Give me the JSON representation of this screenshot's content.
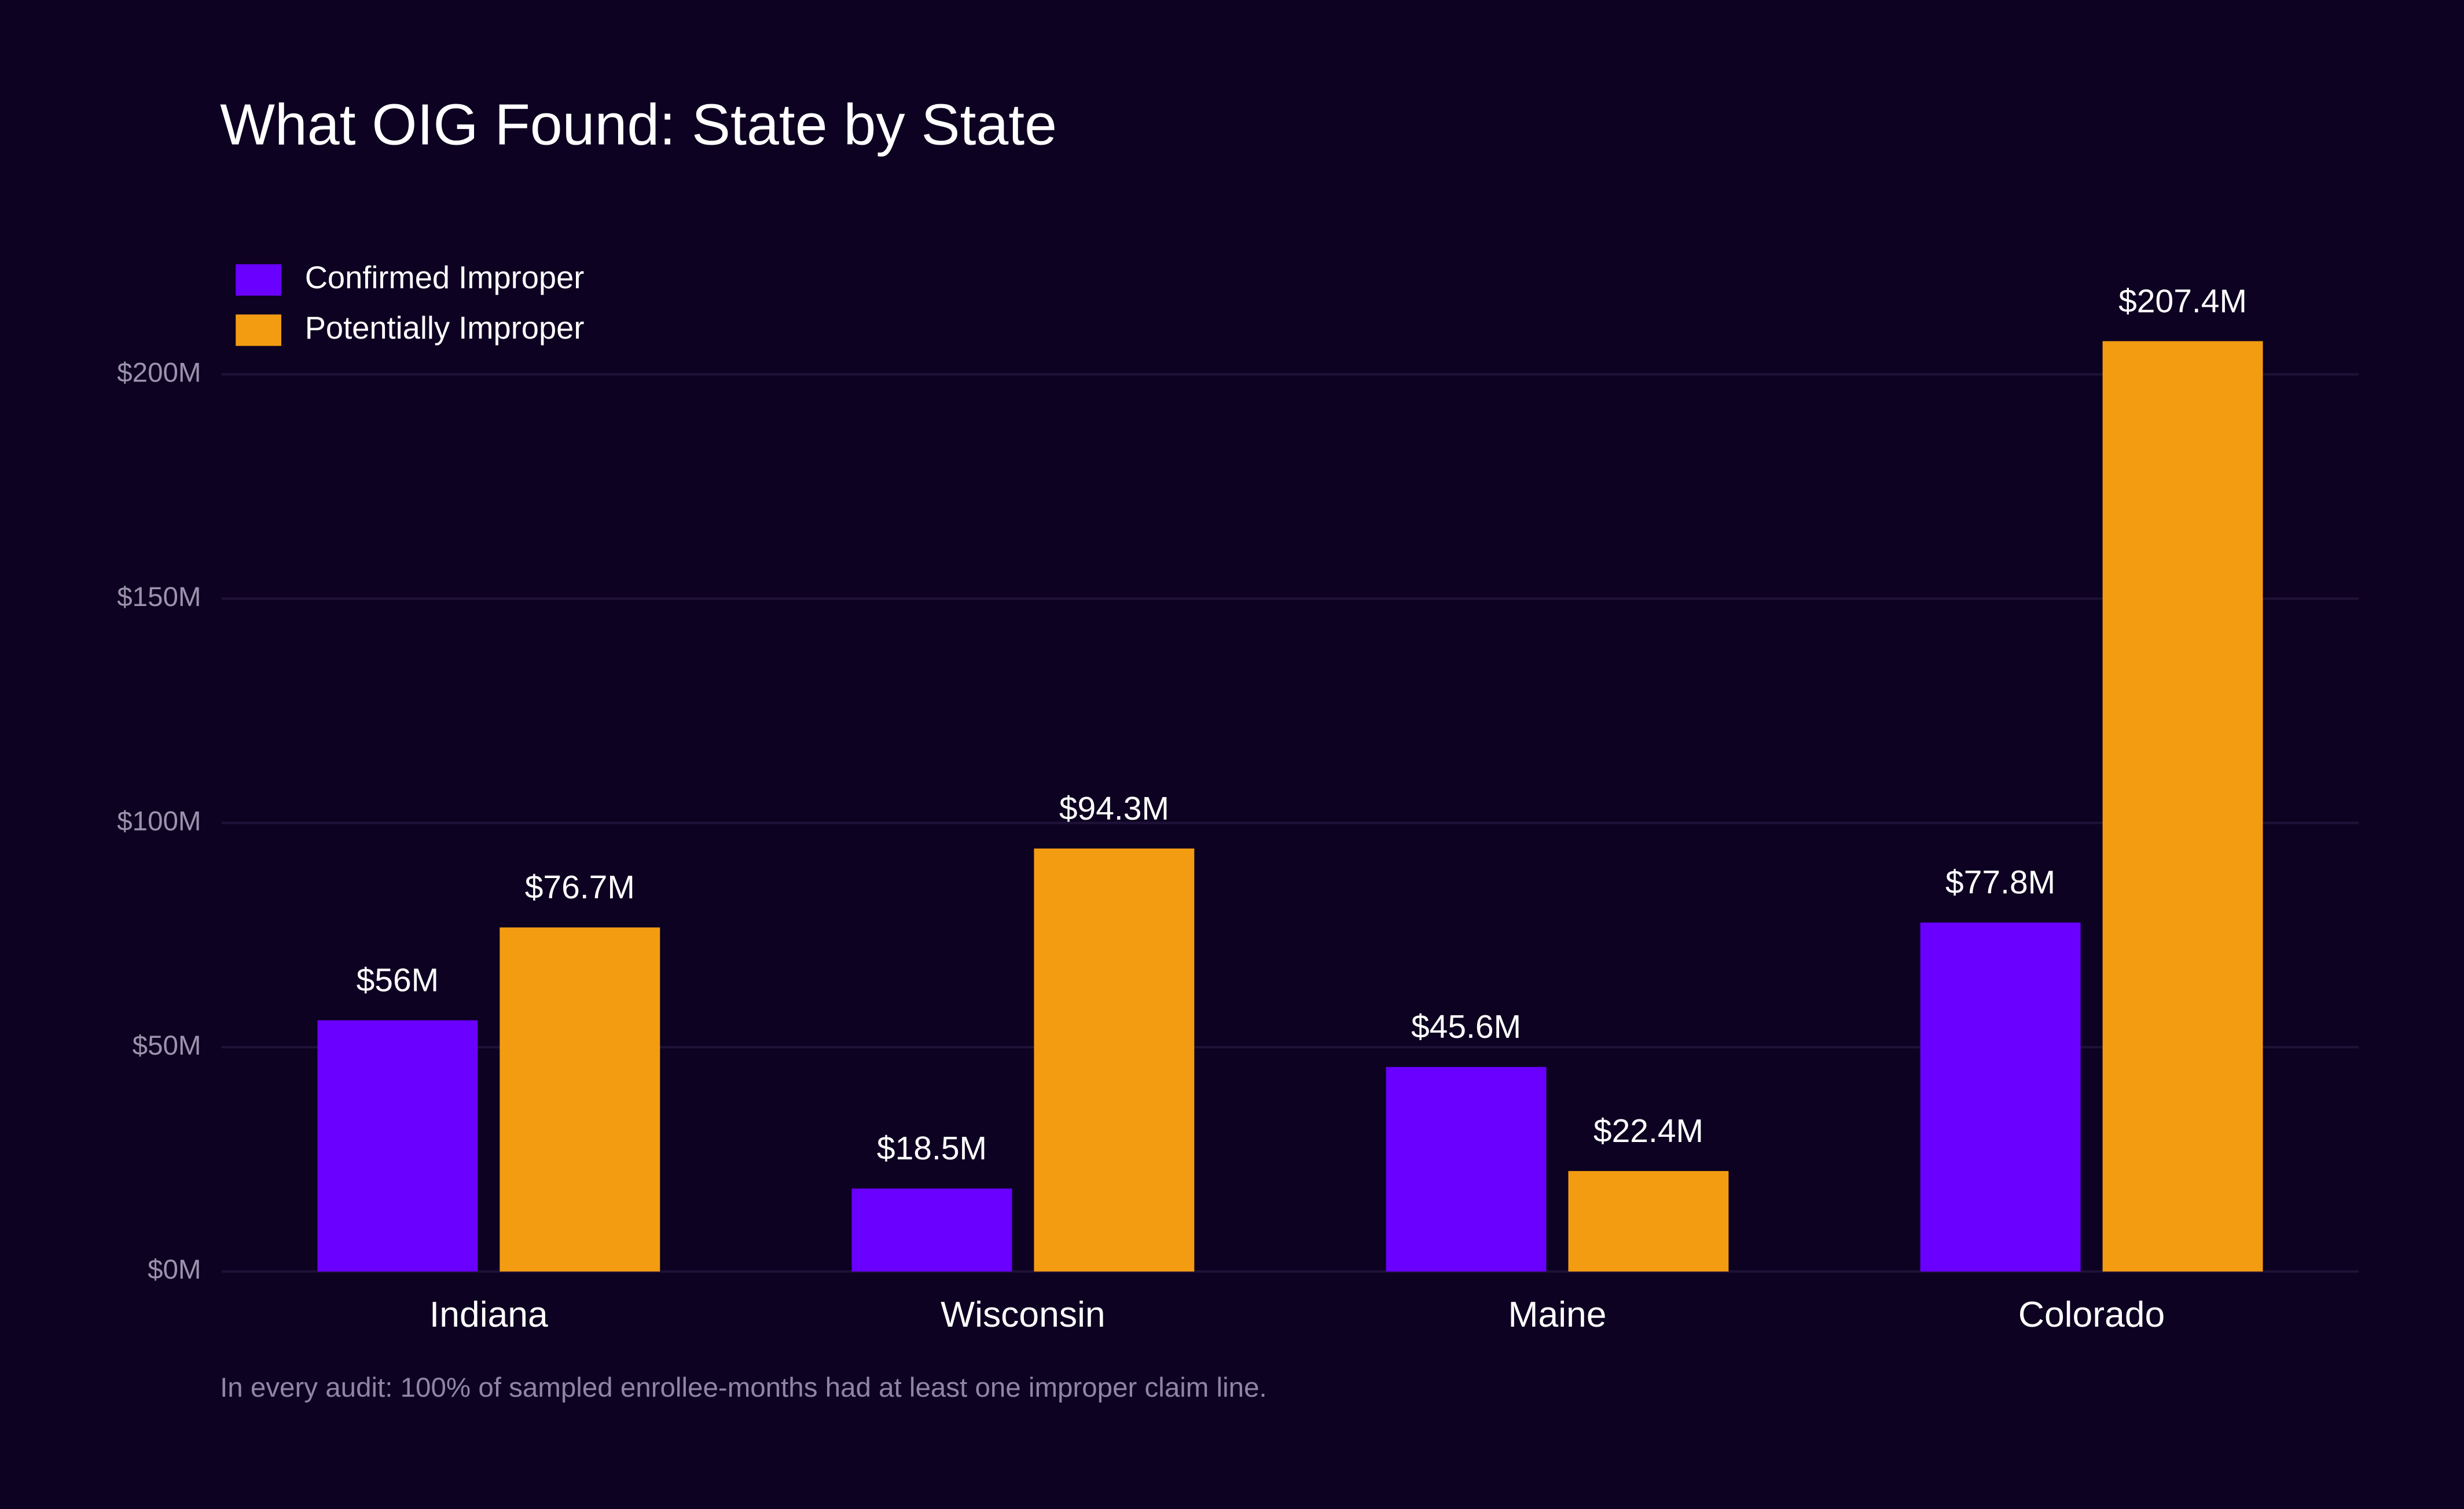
{
  "chart_data": {
    "type": "bar",
    "title": "What OIG Found: State by State",
    "caption": "In every audit: 100% of sampled enrollee-months had at least one improper claim line.",
    "categories": [
      "Indiana",
      "Wisconsin",
      "Maine",
      "Colorado"
    ],
    "series": [
      {
        "name": "Confirmed Improper",
        "color": "#6a00ff",
        "values": [
          56,
          18.5,
          45.6,
          77.8
        ],
        "value_labels": [
          "$56M",
          "$18.5M",
          "$45.6M",
          "$77.8M"
        ]
      },
      {
        "name": "Potentially Improper",
        "color": "#f39c12",
        "values": [
          76.7,
          94.3,
          22.4,
          207.4
        ],
        "value_labels": [
          "$76.7M",
          "$94.3M",
          "$22.4M",
          "$207.4M"
        ]
      }
    ],
    "ylim": [
      0,
      220
    ],
    "yticks": [
      {
        "value": 0,
        "label": "$0M"
      },
      {
        "value": 50,
        "label": "$50M"
      },
      {
        "value": 100,
        "label": "$100M"
      },
      {
        "value": 150,
        "label": "$150M"
      },
      {
        "value": 200,
        "label": "$200M"
      }
    ],
    "grid": true,
    "legend": "top-left"
  }
}
